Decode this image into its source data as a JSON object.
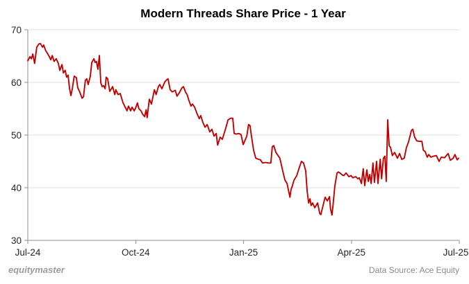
{
  "title": "Modern Threads Share Price - 1 Year",
  "footer": {
    "brand": "equitymaster",
    "source": "Data Source: Ace Equity"
  },
  "colors": {
    "line": "#c00000",
    "grid": "#dcdcdc",
    "axis": "#8c8c8c",
    "title_text": "#000000",
    "tick_label_text": "#262626",
    "footer_text": "#8a8a8a",
    "background": "#ffffff"
  },
  "chart_data": {
    "type": "line",
    "title": "Modern Threads Share Price - 1 Year",
    "xlabel": "",
    "ylabel": "",
    "x_unit": "months since Jul-2024",
    "xlim": [
      0,
      12
    ],
    "ylim": [
      30,
      70
    ],
    "grid": "horizontal",
    "legend_position": "none",
    "xticks": [
      {
        "pos": 0,
        "label": "Jul-24"
      },
      {
        "pos": 3,
        "label": "Oct-24"
      },
      {
        "pos": 6,
        "label": "Jan-25"
      },
      {
        "pos": 9,
        "label": "Apr-25"
      },
      {
        "pos": 12,
        "label": "Jul-25"
      }
    ],
    "yticks": [
      30,
      40,
      50,
      60,
      70
    ],
    "series": [
      {
        "name": "Modern Threads share price",
        "color": "#c00000",
        "points": [
          [
            0,
            64.1
          ],
          [
            0.06,
            64.9
          ],
          [
            0.1,
            64.5
          ],
          [
            0.14,
            65.4
          ],
          [
            0.19,
            63.6
          ],
          [
            0.25,
            66.7
          ],
          [
            0.31,
            67.3
          ],
          [
            0.35,
            67.4
          ],
          [
            0.41,
            66.7
          ],
          [
            0.44,
            67.1
          ],
          [
            0.5,
            66
          ],
          [
            0.54,
            65.6
          ],
          [
            0.6,
            64.9
          ],
          [
            0.64,
            64.3
          ],
          [
            0.68,
            65.1
          ],
          [
            0.73,
            64
          ],
          [
            0.79,
            64.5
          ],
          [
            0.85,
            63.6
          ],
          [
            0.89,
            62.3
          ],
          [
            0.95,
            63.4
          ],
          [
            0.99,
            61.8
          ],
          [
            1.04,
            62.3
          ],
          [
            1.08,
            61
          ],
          [
            1.12,
            61.4
          ],
          [
            1.16,
            58.9
          ],
          [
            1.2,
            57.5
          ],
          [
            1.24,
            58.9
          ],
          [
            1.29,
            61.2
          ],
          [
            1.35,
            60.9
          ],
          [
            1.39,
            59
          ],
          [
            1.45,
            58.1
          ],
          [
            1.51,
            57
          ],
          [
            1.55,
            57.3
          ],
          [
            1.6,
            60.4
          ],
          [
            1.64,
            60.7
          ],
          [
            1.68,
            59.6
          ],
          [
            1.74,
            61.2
          ],
          [
            1.78,
            63.8
          ],
          [
            1.84,
            64.5
          ],
          [
            1.87,
            63.8
          ],
          [
            1.91,
            64
          ],
          [
            1.95,
            62.5
          ],
          [
            1.99,
            65.1
          ],
          [
            2.03,
            59.9
          ],
          [
            2.07,
            59.2
          ],
          [
            2.11,
            59.4
          ],
          [
            2.15,
            58.8
          ],
          [
            2.18,
            61
          ],
          [
            2.22,
            60.7
          ],
          [
            2.28,
            58.3
          ],
          [
            2.36,
            59.2
          ],
          [
            2.42,
            57.7
          ],
          [
            2.45,
            58.6
          ],
          [
            2.51,
            57.7
          ],
          [
            2.57,
            57.9
          ],
          [
            2.65,
            56.1
          ],
          [
            2.71,
            55.3
          ],
          [
            2.76,
            54.6
          ],
          [
            2.8,
            55.5
          ],
          [
            2.86,
            54.6
          ],
          [
            2.9,
            55.3
          ],
          [
            2.96,
            54.6
          ],
          [
            3,
            55.2
          ],
          [
            3.05,
            56.1
          ],
          [
            3.09,
            55
          ],
          [
            3.15,
            54.6
          ],
          [
            3.19,
            54
          ],
          [
            3.25,
            53.5
          ],
          [
            3.29,
            54.8
          ],
          [
            3.32,
            53.3
          ],
          [
            3.38,
            56.8
          ],
          [
            3.44,
            55.9
          ],
          [
            3.52,
            58.6
          ],
          [
            3.57,
            57.7
          ],
          [
            3.63,
            59.2
          ],
          [
            3.67,
            59.6
          ],
          [
            3.73,
            58.8
          ],
          [
            3.81,
            60.1
          ],
          [
            3.86,
            60.5
          ],
          [
            3.9,
            60.7
          ],
          [
            3.96,
            58.6
          ],
          [
            4.02,
            58.2
          ],
          [
            4.1,
            58.5
          ],
          [
            4.15,
            57.4
          ],
          [
            4.21,
            58
          ],
          [
            4.29,
            59
          ],
          [
            4.33,
            59.2
          ],
          [
            4.39,
            58.1
          ],
          [
            4.43,
            57.7
          ],
          [
            4.48,
            56.6
          ],
          [
            4.54,
            55.5
          ],
          [
            4.58,
            55.9
          ],
          [
            4.64,
            55.3
          ],
          [
            4.7,
            54.2
          ],
          [
            4.77,
            53.1
          ],
          [
            4.81,
            53.7
          ],
          [
            4.87,
            52.4
          ],
          [
            4.93,
            51.5
          ],
          [
            4.99,
            52
          ],
          [
            5.06,
            50.6
          ],
          [
            5.12,
            51.1
          ],
          [
            5.18,
            49.8
          ],
          [
            5.24,
            50.3
          ],
          [
            5.28,
            48.1
          ],
          [
            5.35,
            49.6
          ],
          [
            5.41,
            49.2
          ],
          [
            5.51,
            51.4
          ],
          [
            5.57,
            52.9
          ],
          [
            5.64,
            53.2
          ],
          [
            5.7,
            53.2
          ],
          [
            5.74,
            50.3
          ],
          [
            5.8,
            50.2
          ],
          [
            5.87,
            50.3
          ],
          [
            5.93,
            50.1
          ],
          [
            5.99,
            48.2
          ],
          [
            6.09,
            49.8
          ],
          [
            6.14,
            52
          ],
          [
            6.18,
            51.8
          ],
          [
            6.22,
            49.8
          ],
          [
            6.28,
            47.1
          ],
          [
            6.34,
            45.6
          ],
          [
            6.42,
            45.4
          ],
          [
            6.47,
            45.3
          ],
          [
            6.53,
            44.7
          ],
          [
            6.61,
            44.8
          ],
          [
            6.69,
            44.7
          ],
          [
            6.76,
            44.7
          ],
          [
            6.8,
            47.8
          ],
          [
            6.84,
            48
          ],
          [
            6.9,
            46.7
          ],
          [
            6.96,
            46.1
          ],
          [
            7.01,
            45.6
          ],
          [
            7.09,
            43.2
          ],
          [
            7.15,
            41.5
          ],
          [
            7.21,
            40.8
          ],
          [
            7.25,
            39.5
          ],
          [
            7.29,
            38.2
          ],
          [
            7.32,
            39.6
          ],
          [
            7.36,
            40.4
          ],
          [
            7.4,
            41.4
          ],
          [
            7.48,
            42.3
          ],
          [
            7.54,
            43.6
          ],
          [
            7.61,
            45
          ],
          [
            7.67,
            44.7
          ],
          [
            7.73,
            43.2
          ],
          [
            7.77,
            39.3
          ],
          [
            7.81,
            37.1
          ],
          [
            7.85,
            37.9
          ],
          [
            7.88,
            36.6
          ],
          [
            7.92,
            37.1
          ],
          [
            7.98,
            36.2
          ],
          [
            8.06,
            37.1
          ],
          [
            8.12,
            35.1
          ],
          [
            8.15,
            34.9
          ],
          [
            8.21,
            36.6
          ],
          [
            8.27,
            38.2
          ],
          [
            8.33,
            37.5
          ],
          [
            8.39,
            38.3
          ],
          [
            8.42,
            36
          ],
          [
            8.46,
            34.8
          ],
          [
            8.5,
            37.5
          ],
          [
            8.54,
            40.3
          ],
          [
            8.6,
            42.8
          ],
          [
            8.64,
            43
          ],
          [
            8.7,
            42.7
          ],
          [
            8.75,
            42.4
          ],
          [
            8.79,
            42.3
          ],
          [
            8.85,
            42.8
          ],
          [
            8.93,
            42.1
          ],
          [
            8.99,
            42.3
          ],
          [
            9.04,
            41.9
          ],
          [
            9.12,
            42.1
          ],
          [
            9.18,
            41.7
          ],
          [
            9.22,
            41.9
          ],
          [
            9.28,
            40.8
          ],
          [
            9.33,
            43.6
          ],
          [
            9.37,
            40.4
          ],
          [
            9.43,
            43.4
          ],
          [
            9.47,
            41.2
          ],
          [
            9.51,
            42.5
          ],
          [
            9.55,
            40.8
          ],
          [
            9.6,
            44.7
          ],
          [
            9.64,
            41
          ],
          [
            9.7,
            45
          ],
          [
            9.74,
            40.8
          ],
          [
            9.8,
            45.4
          ],
          [
            9.84,
            41.7
          ],
          [
            9.89,
            45.6
          ],
          [
            9.93,
            46
          ],
          [
            9.97,
            41.2
          ],
          [
            10.01,
            52.9
          ],
          [
            10.05,
            48
          ],
          [
            10.09,
            47.6
          ],
          [
            10.14,
            46.1
          ],
          [
            10.2,
            46.7
          ],
          [
            10.28,
            45.6
          ],
          [
            10.34,
            46.5
          ],
          [
            10.4,
            45.4
          ],
          [
            10.47,
            45.6
          ],
          [
            10.53,
            47.6
          ],
          [
            10.59,
            48.7
          ],
          [
            10.67,
            50.9
          ],
          [
            10.71,
            51.1
          ],
          [
            10.76,
            49.6
          ],
          [
            10.82,
            48.9
          ],
          [
            10.9,
            48.8
          ],
          [
            10.96,
            48.8
          ],
          [
            11,
            47.1
          ],
          [
            11.05,
            46.9
          ],
          [
            11.11,
            45.8
          ],
          [
            11.15,
            46.3
          ],
          [
            11.21,
            45.8
          ],
          [
            11.29,
            46
          ],
          [
            11.36,
            46.1
          ],
          [
            11.44,
            45
          ],
          [
            11.5,
            45.8
          ],
          [
            11.59,
            45.7
          ],
          [
            11.69,
            46.5
          ],
          [
            11.75,
            45.2
          ],
          [
            11.83,
            45.6
          ],
          [
            11.88,
            46.3
          ],
          [
            11.94,
            45.3
          ],
          [
            11.98,
            45.6
          ]
        ]
      }
    ]
  }
}
